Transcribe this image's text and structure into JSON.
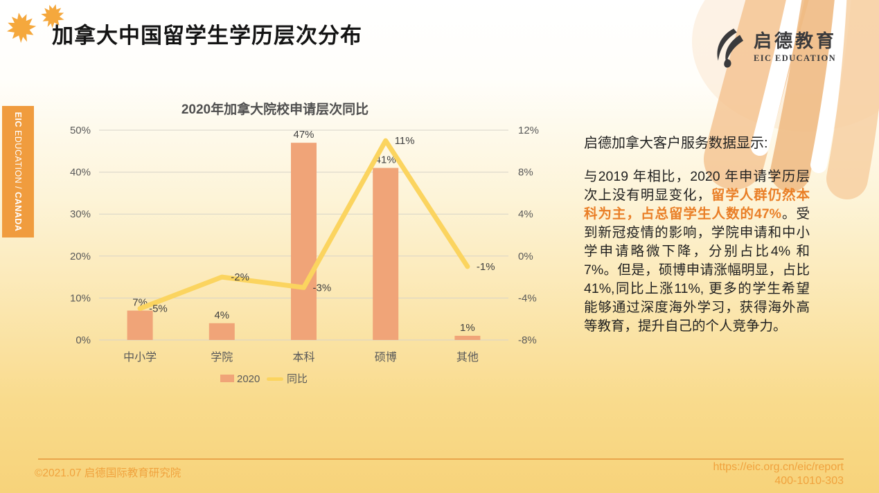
{
  "slide": {
    "title": "加拿大中国留学生学历层次分布"
  },
  "logo": {
    "cn": "启德教育",
    "en": "EIC EDUCATION"
  },
  "sidebar": {
    "bold_left": "EIC",
    "regular": "EDUCATION /",
    "bold_right": "CANADA"
  },
  "chart_data": {
    "type": "bar+line combo",
    "title": "2020年加拿大院校申请层次同比",
    "categories": [
      "中小学",
      "学院",
      "本科",
      "硕博",
      "其他"
    ],
    "series": [
      {
        "name": "2020",
        "type": "bar",
        "axis": "left",
        "values": [
          7,
          4,
          47,
          41,
          1
        ],
        "labels": [
          "7%",
          "4%",
          "47%",
          "41%",
          "1%"
        ],
        "color": "#F0A478"
      },
      {
        "name": "同比",
        "type": "line",
        "axis": "right",
        "values": [
          -5,
          -2,
          -3,
          11,
          -1
        ],
        "labels": [
          "-5%",
          "-2%",
          "-3%",
          "11%",
          "-1%"
        ],
        "color": "#FBD45F"
      }
    ],
    "left_axis": {
      "min": 0,
      "max": 50,
      "ticks": [
        "50%",
        "40%",
        "30%",
        "20%",
        "10%",
        "0%"
      ]
    },
    "right_axis": {
      "min": -8,
      "max": 12,
      "ticks": [
        "12%",
        "8%",
        "4%",
        "0%",
        "-4%",
        "-8%"
      ]
    },
    "grid": true,
    "legend_position": "bottom"
  },
  "panel": {
    "heading": "启德加拿大客户服务数据显示:",
    "p1": "与2019 年相比，2020 年申请学历层次上没有明显变化，",
    "highlight": "留学人群仍然本科为主，占总留学生人数的47%",
    "p2": "。受到新冠疫情的影响，学院申请和中小学申请略微下降，分别占比4% 和7%。但是，硕博申请涨幅明显，占比41%,同比上涨11%, 更多的学生希望能够通过深度海外学习，获得海外高等教育，提升自己的个人竞争力。"
  },
  "footer": {
    "left": "©2021.07 启德国际教育研究院",
    "url": "https://eic.org.cn/eic/report",
    "phone": "400-1010-303"
  },
  "colors": {
    "accent_orange": "#F09C3E",
    "bar": "#F0A478",
    "trend_line": "#FBD45F",
    "highlight_text": "#E97E26",
    "footer_text": "#F0A23D",
    "background_bottom": "#F7D37A"
  }
}
